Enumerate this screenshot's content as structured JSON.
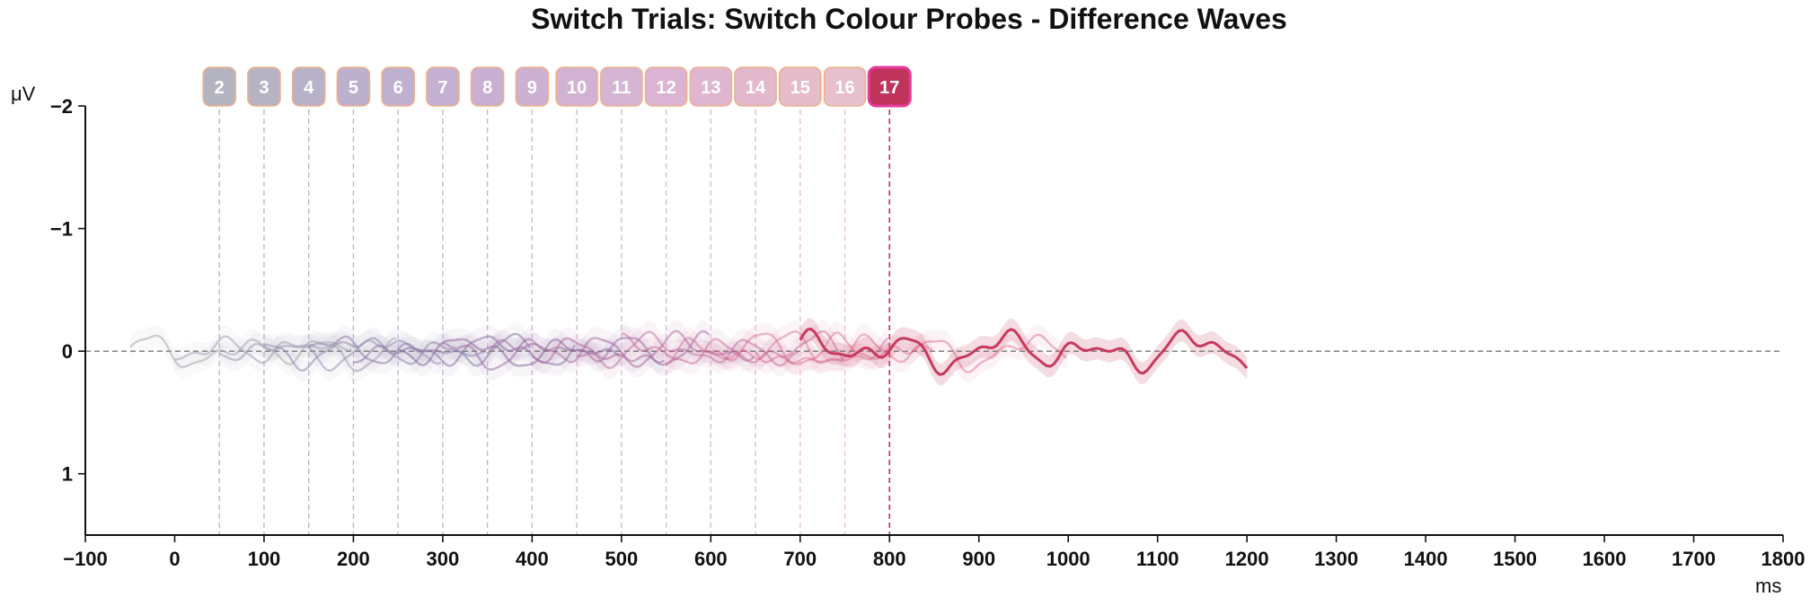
{
  "chart_data": {
    "type": "line",
    "title": "Switch Trials: Switch Colour Probes - Difference Waves",
    "xlabel": "ms",
    "ylabel": "μV",
    "xlim": [
      -100,
      1800
    ],
    "ylim": [
      1.5,
      -2
    ],
    "y_inverted": true,
    "x_ticks": [
      -100,
      0,
      100,
      200,
      300,
      400,
      500,
      600,
      700,
      800,
      900,
      1000,
      1100,
      1200,
      1300,
      1400,
      1500,
      1600,
      1700,
      1800
    ],
    "x_tick_labels": [
      "−100",
      "0",
      "100",
      "200",
      "300",
      "400",
      "500",
      "600",
      "700",
      "800",
      "900",
      "1000",
      "1100",
      "1200",
      "1300",
      "1400",
      "1500",
      "1600",
      "1700",
      "1800"
    ],
    "y_ticks": [
      -2,
      -1,
      0,
      1
    ],
    "y_tick_labels": [
      "−2",
      "−1",
      "0",
      "1"
    ],
    "grid": false,
    "zero_line": true,
    "highlight_probe": "17",
    "probes": [
      {
        "label": "2",
        "onset": 50,
        "color": "#b4b4bf"
      },
      {
        "label": "3",
        "onset": 100,
        "color": "#b6b4c4"
      },
      {
        "label": "4",
        "onset": 150,
        "color": "#b8b2c8"
      },
      {
        "label": "5",
        "onset": 200,
        "color": "#bcb1cc"
      },
      {
        "label": "6",
        "onset": 250,
        "color": "#c0b0d0"
      },
      {
        "label": "7",
        "onset": 300,
        "color": "#c4b0d2"
      },
      {
        "label": "8",
        "onset": 350,
        "color": "#c8b0d2"
      },
      {
        "label": "9",
        "onset": 400,
        "color": "#ccb0d2"
      },
      {
        "label": "10",
        "onset": 450,
        "color": "#d2b2d2"
      },
      {
        "label": "11",
        "onset": 500,
        "color": "#d6b4d4"
      },
      {
        "label": "12",
        "onset": 550,
        "color": "#dab4d2"
      },
      {
        "label": "13",
        "onset": 600,
        "color": "#deb6d0"
      },
      {
        "label": "14",
        "onset": 650,
        "color": "#e2b8cc"
      },
      {
        "label": "15",
        "onset": 700,
        "color": "#e4bcca"
      },
      {
        "label": "16",
        "onset": 750,
        "color": "#e6c0cc"
      },
      {
        "label": "17",
        "onset": 800,
        "color": "#c0335a"
      }
    ],
    "series": [
      {
        "probe": "2",
        "x_start": -50,
        "x_end": 200,
        "color": "#a8a8b0",
        "opacity": 0.55,
        "amp": 0.14
      },
      {
        "probe": "3",
        "x_start": 0,
        "x_end": 250,
        "color": "#a4a0b4",
        "opacity": 0.55,
        "amp": 0.14
      },
      {
        "probe": "4",
        "x_start": 50,
        "x_end": 300,
        "color": "#9e96b4",
        "opacity": 0.55,
        "amp": 0.13
      },
      {
        "probe": "5",
        "x_start": 100,
        "x_end": 350,
        "color": "#948aae",
        "opacity": 0.55,
        "amp": 0.13
      },
      {
        "probe": "6",
        "x_start": 150,
        "x_end": 400,
        "color": "#8c7ea8",
        "opacity": 0.55,
        "amp": 0.13
      },
      {
        "probe": "7",
        "x_start": 200,
        "x_end": 450,
        "color": "#8a74a4",
        "opacity": 0.55,
        "amp": 0.13
      },
      {
        "probe": "8",
        "x_start": 250,
        "x_end": 500,
        "color": "#8c6ca0",
        "opacity": 0.55,
        "amp": 0.13
      },
      {
        "probe": "9",
        "x_start": 300,
        "x_end": 550,
        "color": "#94689e",
        "opacity": 0.5,
        "amp": 0.14
      },
      {
        "probe": "10",
        "x_start": 350,
        "x_end": 600,
        "color": "#a0669c",
        "opacity": 0.5,
        "amp": 0.14
      },
      {
        "probe": "11",
        "x_start": 400,
        "x_end": 650,
        "color": "#ac6498",
        "opacity": 0.5,
        "amp": 0.14
      },
      {
        "probe": "12",
        "x_start": 450,
        "x_end": 700,
        "color": "#b86294",
        "opacity": 0.45,
        "amp": 0.14
      },
      {
        "probe": "13",
        "x_start": 500,
        "x_end": 750,
        "color": "#c26090",
        "opacity": 0.45,
        "amp": 0.14
      },
      {
        "probe": "14",
        "x_start": 550,
        "x_end": 800,
        "color": "#cc5c88",
        "opacity": 0.4,
        "amp": 0.15
      },
      {
        "probe": "15",
        "x_start": 600,
        "x_end": 850,
        "color": "#d45882",
        "opacity": 0.4,
        "amp": 0.15
      },
      {
        "probe": "16",
        "x_start": 650,
        "x_end": 1000,
        "color": "#d8527a",
        "opacity": 0.4,
        "amp": 0.15
      },
      {
        "probe": "17",
        "x_start": 700,
        "x_end": 1200,
        "color": "#c8395e",
        "opacity": 1.0,
        "amp": 0.17
      }
    ]
  }
}
